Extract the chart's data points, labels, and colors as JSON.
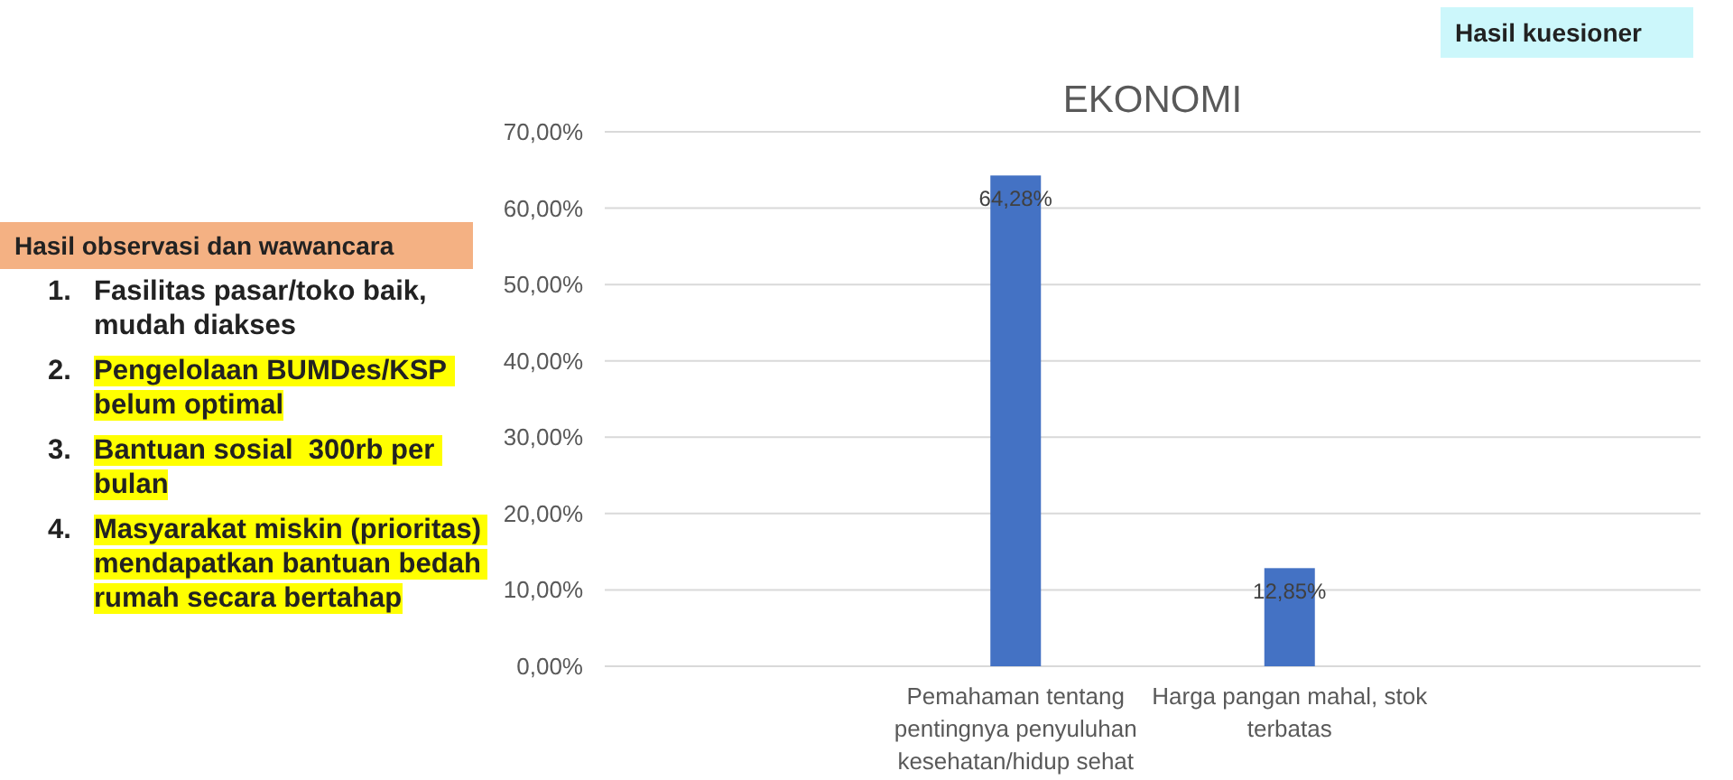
{
  "chart_data": {
    "type": "bar",
    "title": "EKONOMI",
    "categories": [
      null,
      "Pemahaman tentang pentingnya penyuluhan kesehatan/hidup sehat",
      "Harga pangan mahal, stok terbatas",
      null
    ],
    "values": [
      null,
      64.28,
      12.85,
      null
    ],
    "value_labels": [
      null,
      "64,28%",
      "12,85%",
      null
    ],
    "color": "#4472c4",
    "ylim": [
      0,
      70
    ],
    "yticks": [
      {
        "value": 0,
        "label": "0,00%"
      },
      {
        "value": 10,
        "label": "10,00%"
      },
      {
        "value": 20,
        "label": "20,00%"
      },
      {
        "value": 30,
        "label": "30,00%"
      },
      {
        "value": 40,
        "label": "40,00%"
      },
      {
        "value": 50,
        "label": "50,00%"
      },
      {
        "value": 60,
        "label": "60,00%"
      },
      {
        "value": 70,
        "label": "70,00%"
      }
    ],
    "grid": "y",
    "annotations": [
      "Hasil kuesioner",
      "Hasil observasi dan wawancara",
      "1. Fasilitas pasar/toko baik, mudah diakses",
      "2. Pengelolaan BUMDes/KSP belum optimal",
      "3. Bantuan sosial  300rb per bulan",
      "4. Masyarakat miskin (prioritas) mendapatkan bantuan bedah rumah secara bertahap"
    ]
  }
}
